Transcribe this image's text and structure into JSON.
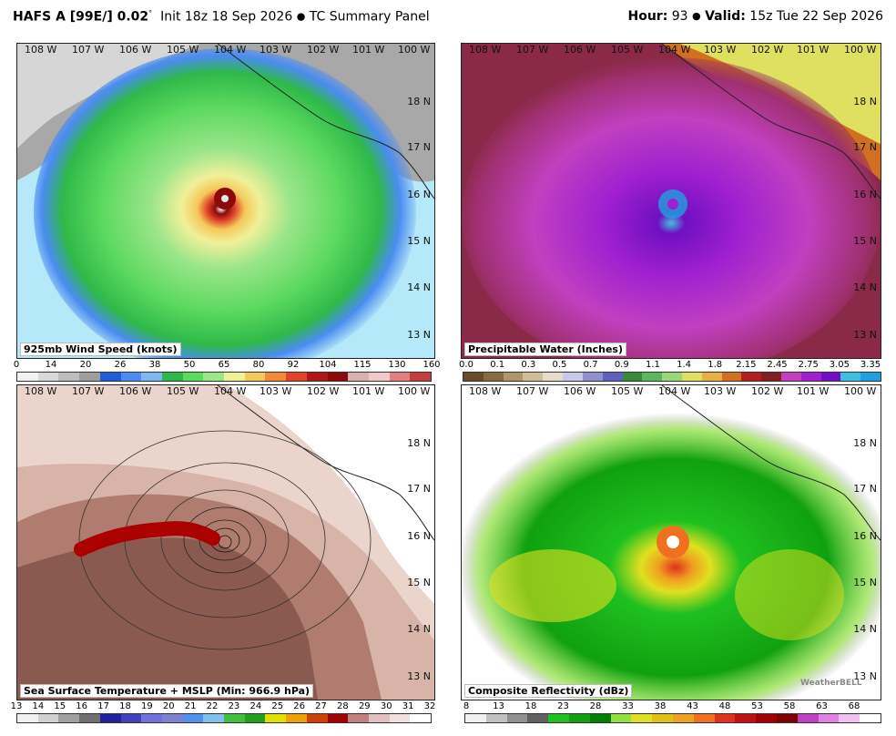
{
  "header": {
    "model": "HAFS A [99E/] 0.02",
    "init_sup": "°",
    "init": "Init 18z 18 Sep 2026",
    "panel_title": "TC Summary Panel",
    "hour_label": "Hour:",
    "hour": "93",
    "valid_label": "Valid:",
    "valid": "15z Tue 22 Sep 2026"
  },
  "lon_labels": [
    "108 W",
    "107 W",
    "106 W",
    "105 W",
    "104 W",
    "103 W",
    "102 W",
    "101 W",
    "100 W"
  ],
  "lat_labels": [
    "18 N",
    "17 N",
    "16 N",
    "15 N",
    "14 N",
    "13 N"
  ],
  "panels": [
    {
      "id": "wind",
      "label": "925mb Wind Speed (knots)",
      "scale_ticks": [
        "0",
        "14",
        "20",
        "26",
        "38",
        "50",
        "65",
        "80",
        "92",
        "104",
        "115",
        "130",
        "160"
      ],
      "scale_colors": [
        "#f2f2f2",
        "#d9d9d9",
        "#bdbdbd",
        "#9e9e9e",
        "#1f5fd6",
        "#4a8cf0",
        "#7fb6f5",
        "#2fb94a",
        "#5cd95f",
        "#9be58a",
        "#f0f09a",
        "#f5c85a",
        "#f08a3a",
        "#e0442a",
        "#b01818",
        "#8a0a0a",
        "#d9b0b0",
        "#f0c8c8",
        "#e08080",
        "#c04040"
      ]
    },
    {
      "id": "pwat",
      "label": "Precipitable Water (Inches)",
      "scale_ticks": [
        "0.0",
        "0.1",
        "0.3",
        "0.5",
        "0.7",
        "0.9",
        "1.1",
        "1.4",
        "1.8",
        "2.15",
        "2.45",
        "2.75",
        "3.05",
        "3.35"
      ],
      "scale_colors": [
        "#6b4a2a",
        "#8a6a42",
        "#b0946a",
        "#d0bc98",
        "#e8dcc8",
        "#c8c8e8",
        "#9090d0",
        "#6060c0",
        "#3a8a3a",
        "#5ab85a",
        "#98d878",
        "#e0e060",
        "#e8b040",
        "#d07020",
        "#b02020",
        "#802020",
        "#c040c0",
        "#a020d0",
        "#7010c0",
        "#40c0e0",
        "#20a0e0"
      ]
    },
    {
      "id": "sst",
      "label": "Sea Surface Temperature + MSLP (Min: 966.9 hPa)",
      "scale_ticks": [
        "13",
        "14",
        "15",
        "16",
        "17",
        "18",
        "19",
        "20",
        "21",
        "22",
        "23",
        "24",
        "25",
        "26",
        "27",
        "28",
        "29",
        "30",
        "31",
        "32"
      ],
      "scale_colors": [
        "#f0f0f0",
        "#d0d0d0",
        "#a0a0a0",
        "#707070",
        "#2020a0",
        "#4040c0",
        "#7070e0",
        "#8080d0",
        "#5090f0",
        "#80c0f0",
        "#40c040",
        "#20a020",
        "#e0e000",
        "#f0a000",
        "#d04000",
        "#a00000",
        "#c08080",
        "#e0c0c0",
        "#f0e0e0",
        "#ffffff"
      ]
    },
    {
      "id": "refl",
      "label": "Composite Reflectivity (dBz)",
      "scale_ticks": [
        "8",
        "13",
        "18",
        "23",
        "28",
        "33",
        "38",
        "43",
        "48",
        "53",
        "58",
        "63",
        "68"
      ],
      "scale_colors": [
        "#f0f0f0",
        "#c0c0c0",
        "#909090",
        "#606060",
        "#20c020",
        "#10a010",
        "#008000",
        "#90e040",
        "#e0e020",
        "#e0c010",
        "#f0a020",
        "#f07020",
        "#e03020",
        "#c01010",
        "#a00000",
        "#800000",
        "#c040c0",
        "#e080e0",
        "#f0c0f0",
        "#ffffff"
      ]
    }
  ],
  "logo": "WeatherBELL"
}
